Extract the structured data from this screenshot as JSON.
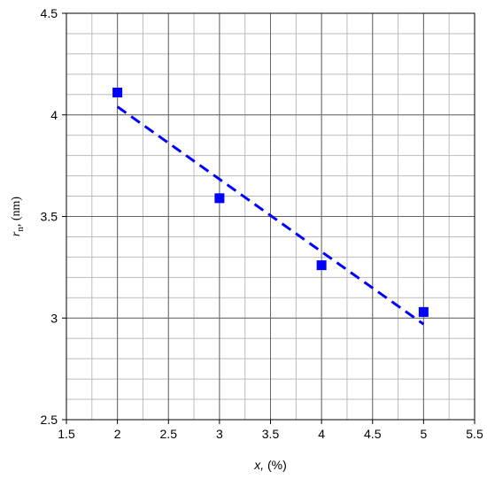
{
  "chart_data": {
    "type": "scatter",
    "x_label": {
      "symbol": "x,",
      "unit": " (%)"
    },
    "y_label": {
      "symbol": "r",
      "subscript": "n",
      "unit": ", (nm)"
    },
    "xlim": [
      1.5,
      5.5
    ],
    "xticks": [
      1.5,
      2,
      2.5,
      3,
      3.5,
      4,
      4.5,
      5,
      5.5
    ],
    "ylim": [
      2.5,
      4.5
    ],
    "yticks": [
      2.5,
      3,
      3.5,
      4,
      4.5
    ],
    "grid": true,
    "minor_grid": {
      "x": 0.25,
      "y": 0.1
    },
    "series": [
      {
        "kind": "points",
        "color": "#0000ff",
        "x": [
          2,
          3,
          4,
          5
        ],
        "values": [
          4.11,
          3.59,
          3.26,
          3.03
        ]
      },
      {
        "kind": "fit",
        "color": "#0000ff",
        "x": [
          2,
          5
        ],
        "values": [
          4.04,
          2.97
        ]
      }
    ]
  }
}
